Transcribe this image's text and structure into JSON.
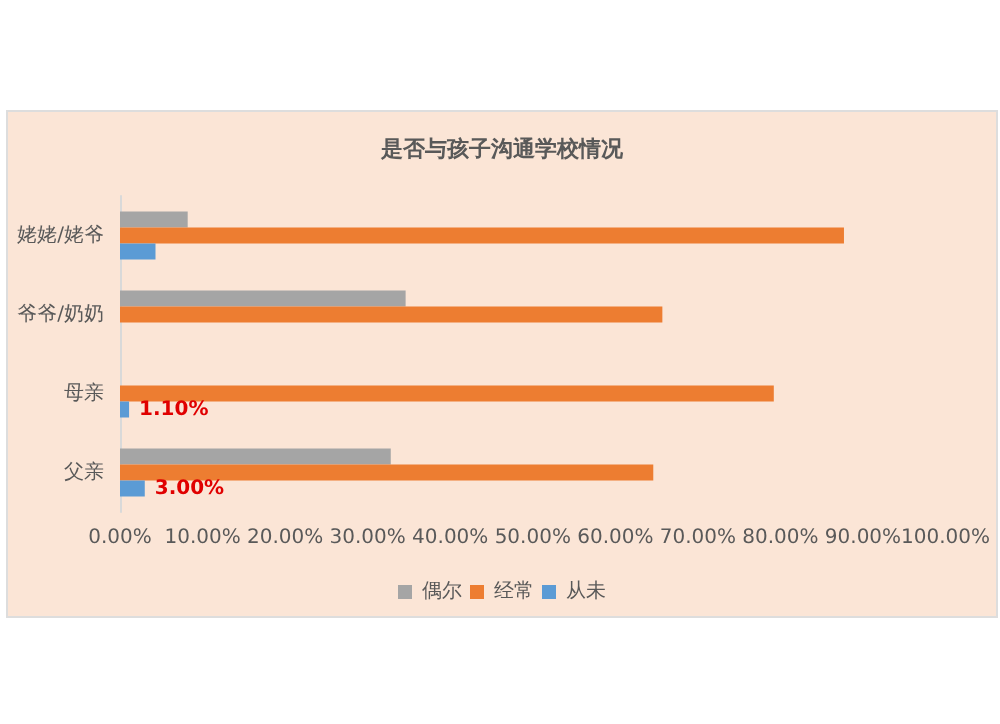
{
  "chart_data": {
    "type": "bar",
    "orientation": "horizontal",
    "title": "是否与孩子沟通学校情况",
    "categories": [
      "姥姥/姥爷",
      "爷爷/奶奶",
      "母亲",
      "父亲"
    ],
    "series": [
      {
        "name": "偶尔",
        "color": "#a5a5a5",
        "values": [
          8.2,
          34.6,
          null,
          32.8
        ]
      },
      {
        "name": "经常",
        "color": "#ed7d31",
        "values": [
          87.7,
          65.7,
          79.2,
          64.6
        ]
      },
      {
        "name": "从未",
        "color": "#5b9bd5",
        "values": [
          4.3,
          null,
          1.1,
          3.0
        ],
        "value_labels": [
          null,
          null,
          "1.10%",
          "3.00%"
        ]
      }
    ],
    "xlim": [
      0,
      100
    ],
    "xticks": [
      {
        "value": 0,
        "label": "0.00%"
      },
      {
        "value": 10,
        "label": "10.00%"
      },
      {
        "value": 20,
        "label": "20.00%"
      },
      {
        "value": 30,
        "label": "30.00%"
      },
      {
        "value": 40,
        "label": "40.00%"
      },
      {
        "value": 50,
        "label": "50.00%"
      },
      {
        "value": 60,
        "label": "60.00%"
      },
      {
        "value": 70,
        "label": "70.00%"
      },
      {
        "value": 80,
        "label": "80.00%"
      },
      {
        "value": 90,
        "label": "90.00%"
      },
      {
        "value": 100,
        "label": "100.00%"
      }
    ],
    "grid": false,
    "legend": "bottom"
  }
}
